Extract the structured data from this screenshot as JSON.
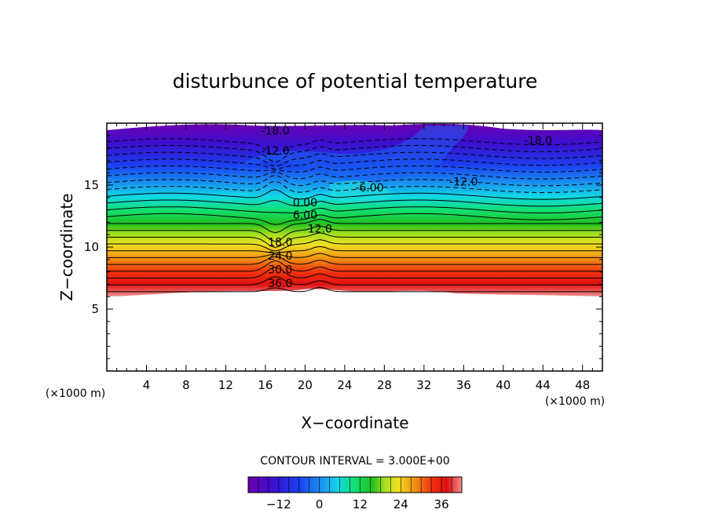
{
  "chart_data": {
    "type": "contour",
    "title": "disturbunce of potential temperature",
    "xlabel": "X−coordinate",
    "ylabel": "Z−coordinate",
    "x_unit_label": "(×1000 m)",
    "y_unit_label": "(×1000 m)",
    "xlim": [
      0,
      50
    ],
    "ylim": [
      0,
      20
    ],
    "x_ticks": [
      4,
      8,
      12,
      16,
      20,
      24,
      28,
      32,
      36,
      40,
      44,
      48
    ],
    "y_ticks": [
      5,
      10,
      15
    ],
    "contour_interval_label": "CONTOUR INTERVAL = 3.000E+00",
    "contour_interval": 3,
    "colorbar": {
      "min": -21,
      "max": 42,
      "tick_values": [
        -12,
        0,
        12,
        24,
        36
      ],
      "tick_labels": [
        "−12",
        "0",
        "12",
        "24",
        "36"
      ]
    },
    "contour_labels": [
      {
        "text": "-18.0",
        "x": 17.0,
        "z": 19.4
      },
      {
        "text": "-18.0",
        "x": 43.5,
        "z": 18.6
      },
      {
        "text": "-12.0",
        "x": 17.0,
        "z": 17.8
      },
      {
        "text": "-12.0",
        "x": 36.0,
        "z": 15.3
      },
      {
        "text": "-6.00",
        "x": 26.5,
        "z": 14.8
      },
      {
        "text": "0.00",
        "x": 20.0,
        "z": 13.6
      },
      {
        "text": "6.00",
        "x": 20.0,
        "z": 12.6
      },
      {
        "text": "12.0",
        "x": 21.5,
        "z": 11.5
      },
      {
        "text": "18.0",
        "x": 17.5,
        "z": 10.4
      },
      {
        "text": "24.0",
        "x": 17.5,
        "z": 9.3
      },
      {
        "text": "30.0",
        "x": 17.5,
        "z": 8.2
      },
      {
        "text": "36.0",
        "x": 17.5,
        "z": 7.1
      }
    ],
    "grid": false,
    "legend": "bottom colorbar"
  }
}
